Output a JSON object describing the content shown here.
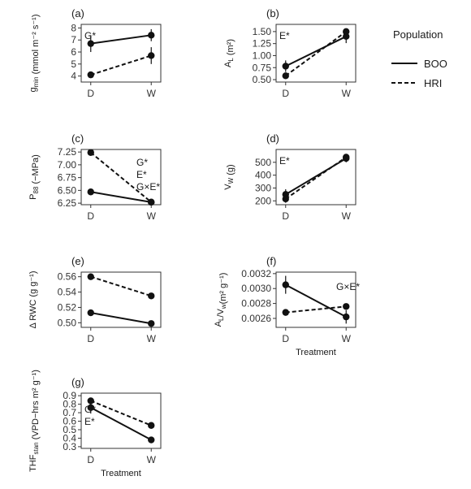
{
  "legend": {
    "title": "Population",
    "items": [
      {
        "name": "BOO",
        "linestyle": "solid"
      },
      {
        "name": "HRI",
        "linestyle": "dashed"
      }
    ],
    "placement": "right"
  },
  "chart_data": [
    {
      "id": "a",
      "panel_label": "(a)",
      "type": "line",
      "ylabel_main": "g",
      "ylabel_sub": "min",
      "ylabel_rest": " (mmol m⁻² s⁻¹)",
      "xlabel": "",
      "categories": [
        "D",
        "W"
      ],
      "ylim": [
        3.5,
        8.3
      ],
      "yticks": [
        4,
        5,
        6,
        7,
        8
      ],
      "sig": [
        "G*"
      ],
      "sig_pos": "top-left",
      "series": [
        {
          "name": "BOO",
          "values": [
            6.7,
            7.4
          ],
          "errors": [
            0.7,
            0.5
          ]
        },
        {
          "name": "HRI",
          "values": [
            4.1,
            5.7
          ],
          "errors": [
            0.25,
            0.7
          ]
        }
      ]
    },
    {
      "id": "b",
      "panel_label": "(b)",
      "type": "line",
      "ylabel_main": "A",
      "ylabel_sub": "L",
      "ylabel_rest": " (m²)",
      "xlabel": "",
      "categories": [
        "D",
        "W"
      ],
      "ylim": [
        0.45,
        1.65
      ],
      "yticks": [
        0.5,
        0.75,
        1.0,
        1.25,
        1.5
      ],
      "ytick_labels": [
        "0.50",
        "0.75",
        "1.00",
        "1.25",
        "1.50"
      ],
      "sig": [
        "E*"
      ],
      "sig_pos": "top-left",
      "series": [
        {
          "name": "BOO",
          "values": [
            0.78,
            1.4
          ],
          "errors": [
            0.12,
            0.14
          ]
        },
        {
          "name": "HRI",
          "values": [
            0.58,
            1.5
          ],
          "errors": [
            0.06,
            0.05
          ]
        }
      ]
    },
    {
      "id": "c",
      "panel_label": "(c)",
      "type": "line",
      "ylabel_main": "P",
      "ylabel_sub": "88",
      "ylabel_rest": " (−MPa)",
      "xlabel": "",
      "categories": [
        "D",
        "W"
      ],
      "ylim": [
        6.22,
        7.3
      ],
      "yticks": [
        6.25,
        6.5,
        6.75,
        7.0,
        7.25
      ],
      "ytick_labels": [
        "6.25",
        "6.50",
        "6.75",
        "7.00",
        "7.25"
      ],
      "sig": [
        "G*",
        "E*",
        "G×E*"
      ],
      "sig_pos": "right",
      "series": [
        {
          "name": "BOO",
          "values": [
            6.47,
            6.27
          ],
          "errors": [
            0,
            0
          ]
        },
        {
          "name": "HRI",
          "values": [
            7.24,
            6.27
          ],
          "errors": [
            0,
            0
          ]
        }
      ]
    },
    {
      "id": "d",
      "panel_label": "(d)",
      "type": "line",
      "ylabel_main": "V",
      "ylabel_sub": "W",
      "ylabel_rest": " (g)",
      "xlabel": "",
      "categories": [
        "D",
        "W"
      ],
      "ylim": [
        170,
        600
      ],
      "yticks": [
        200,
        300,
        400,
        500
      ],
      "sig": [
        "E*"
      ],
      "sig_pos": "top-left",
      "series": [
        {
          "name": "BOO",
          "values": [
            250,
            530
          ],
          "errors": [
            40,
            30
          ]
        },
        {
          "name": "HRI",
          "values": [
            215,
            540
          ],
          "errors": [
            30,
            25
          ]
        }
      ]
    },
    {
      "id": "e",
      "panel_label": "(e)",
      "type": "line",
      "ylabel_main": "Δ RWC (g g⁻¹)",
      "ylabel_sub": "",
      "ylabel_rest": "",
      "xlabel": "",
      "categories": [
        "D",
        "W"
      ],
      "ylim": [
        0.494,
        0.566
      ],
      "yticks": [
        0.5,
        0.52,
        0.54,
        0.56
      ],
      "ytick_labels": [
        "0.50",
        "0.52",
        "0.54",
        "0.56"
      ],
      "sig": [],
      "sig_pos": "top-left",
      "series": [
        {
          "name": "BOO",
          "values": [
            0.513,
            0.499
          ],
          "errors": [
            0,
            0
          ]
        },
        {
          "name": "HRI",
          "values": [
            0.56,
            0.535
          ],
          "errors": [
            0,
            0
          ]
        }
      ]
    },
    {
      "id": "f",
      "panel_label": "(f)",
      "type": "line",
      "ylabel_main": "A",
      "ylabel_sub": "L",
      "ylabel_rest": "/V",
      "ylabel_sub2": "w",
      "ylabel_rest2": "(m² g⁻¹)",
      "xlabel": "Treatment",
      "categories": [
        "D",
        "W"
      ],
      "ylim": [
        0.00248,
        0.00322
      ],
      "yticks": [
        0.0026,
        0.0028,
        0.003,
        0.0032
      ],
      "ytick_labels": [
        "0.0026",
        "0.0028",
        "0.0030",
        "0.0032"
      ],
      "sig": [
        "G×E*"
      ],
      "sig_pos": "top-right",
      "series": [
        {
          "name": "BOO",
          "values": [
            0.00305,
            0.00262
          ],
          "errors": [
            0.00012,
            9e-05
          ]
        },
        {
          "name": "HRI",
          "values": [
            0.00268,
            0.00276
          ],
          "errors": [
            0,
            0
          ]
        }
      ]
    },
    {
      "id": "g",
      "panel_label": "(g)",
      "type": "line",
      "ylabel_main": "THF",
      "ylabel_sub": "stan",
      "ylabel_rest": " (VPD−hrs m² g⁻¹)",
      "xlabel": "Treatment",
      "categories": [
        "D",
        "W"
      ],
      "ylim": [
        0.28,
        0.93
      ],
      "yticks": [
        0.3,
        0.4,
        0.5,
        0.6,
        0.7,
        0.8,
        0.9
      ],
      "sig": [
        "G*",
        "E*"
      ],
      "sig_pos": "left",
      "series": [
        {
          "name": "BOO",
          "values": [
            0.76,
            0.38
          ],
          "errors": [
            0.07,
            0.03
          ]
        },
        {
          "name": "HRI",
          "values": [
            0.84,
            0.55
          ],
          "errors": [
            0.03,
            0.03
          ]
        }
      ]
    }
  ]
}
